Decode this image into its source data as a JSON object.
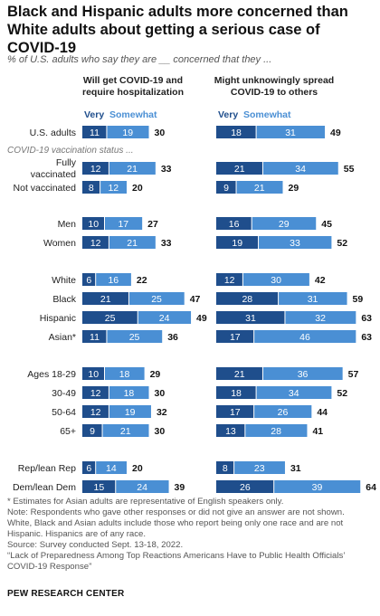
{
  "title": "Black and Hispanic adults more concerned than White adults about getting a serious case of COVID-19",
  "subtitle": "% of U.S. adults who say they are __ concerned that they ...",
  "notes": [
    "* Estimates for Asian adults are representative of English speakers only.",
    "Note: Respondents who gave other responses or did not give an answer are not shown.",
    "White, Black and Asian adults include those who report being only one race and are not",
    "Hispanic. Hispanics are of any race.",
    "Source: Survey conducted Sept. 13-18, 2022.",
    "“Lack of Preparedness Among Top Reactions Americans Have to Public Health Officials’",
    "COVID-19 Response”"
  ],
  "source_org": "PEW RESEARCH CENTER",
  "colors": {
    "very": "#1f4e8c",
    "somewhat": "#4a8fd4",
    "very_text": "#1f4e8c",
    "somewhat_text": "#4a8fd4",
    "group_text": "#777777"
  },
  "chart_data": {
    "type": "bar",
    "stacked": true,
    "orientation": "horizontal",
    "series_names": [
      "Very",
      "Somewhat"
    ],
    "group_label": "COVID-19 vaccination status ...",
    "categories": [
      "U.S. adults",
      "Fully vaccinated",
      "Not vaccinated",
      "Men",
      "Women",
      "White",
      "Black",
      "Hispanic",
      "Asian*",
      "Ages 18-29",
      "30-49",
      "50-64",
      "65+",
      "Rep/lean Rep",
      "Dem/lean Dem"
    ],
    "panels": [
      {
        "title": "Will get COVID-19 and require hospitalization",
        "series": [
          {
            "name": "Very",
            "values": [
              11,
              12,
              8,
              10,
              12,
              6,
              21,
              25,
              11,
              10,
              12,
              12,
              9,
              6,
              15
            ]
          },
          {
            "name": "Somewhat",
            "values": [
              19,
              21,
              12,
              17,
              21,
              16,
              25,
              24,
              25,
              18,
              18,
              19,
              21,
              14,
              24
            ]
          }
        ],
        "totals": [
          30,
          33,
          20,
          27,
          33,
          22,
          47,
          49,
          36,
          29,
          30,
          32,
          30,
          20,
          39
        ]
      },
      {
        "title": "Might unknowingly spread COVID-19 to others",
        "series": [
          {
            "name": "Very",
            "values": [
              18,
              21,
              9,
              16,
              19,
              12,
              28,
              31,
              17,
              21,
              18,
              17,
              13,
              8,
              26
            ]
          },
          {
            "name": "Somewhat",
            "values": [
              31,
              34,
              21,
              29,
              33,
              30,
              31,
              32,
              46,
              36,
              34,
              26,
              28,
              23,
              39
            ]
          }
        ],
        "totals": [
          49,
          55,
          29,
          45,
          52,
          42,
          59,
          63,
          63,
          57,
          52,
          44,
          41,
          31,
          64
        ]
      }
    ]
  }
}
